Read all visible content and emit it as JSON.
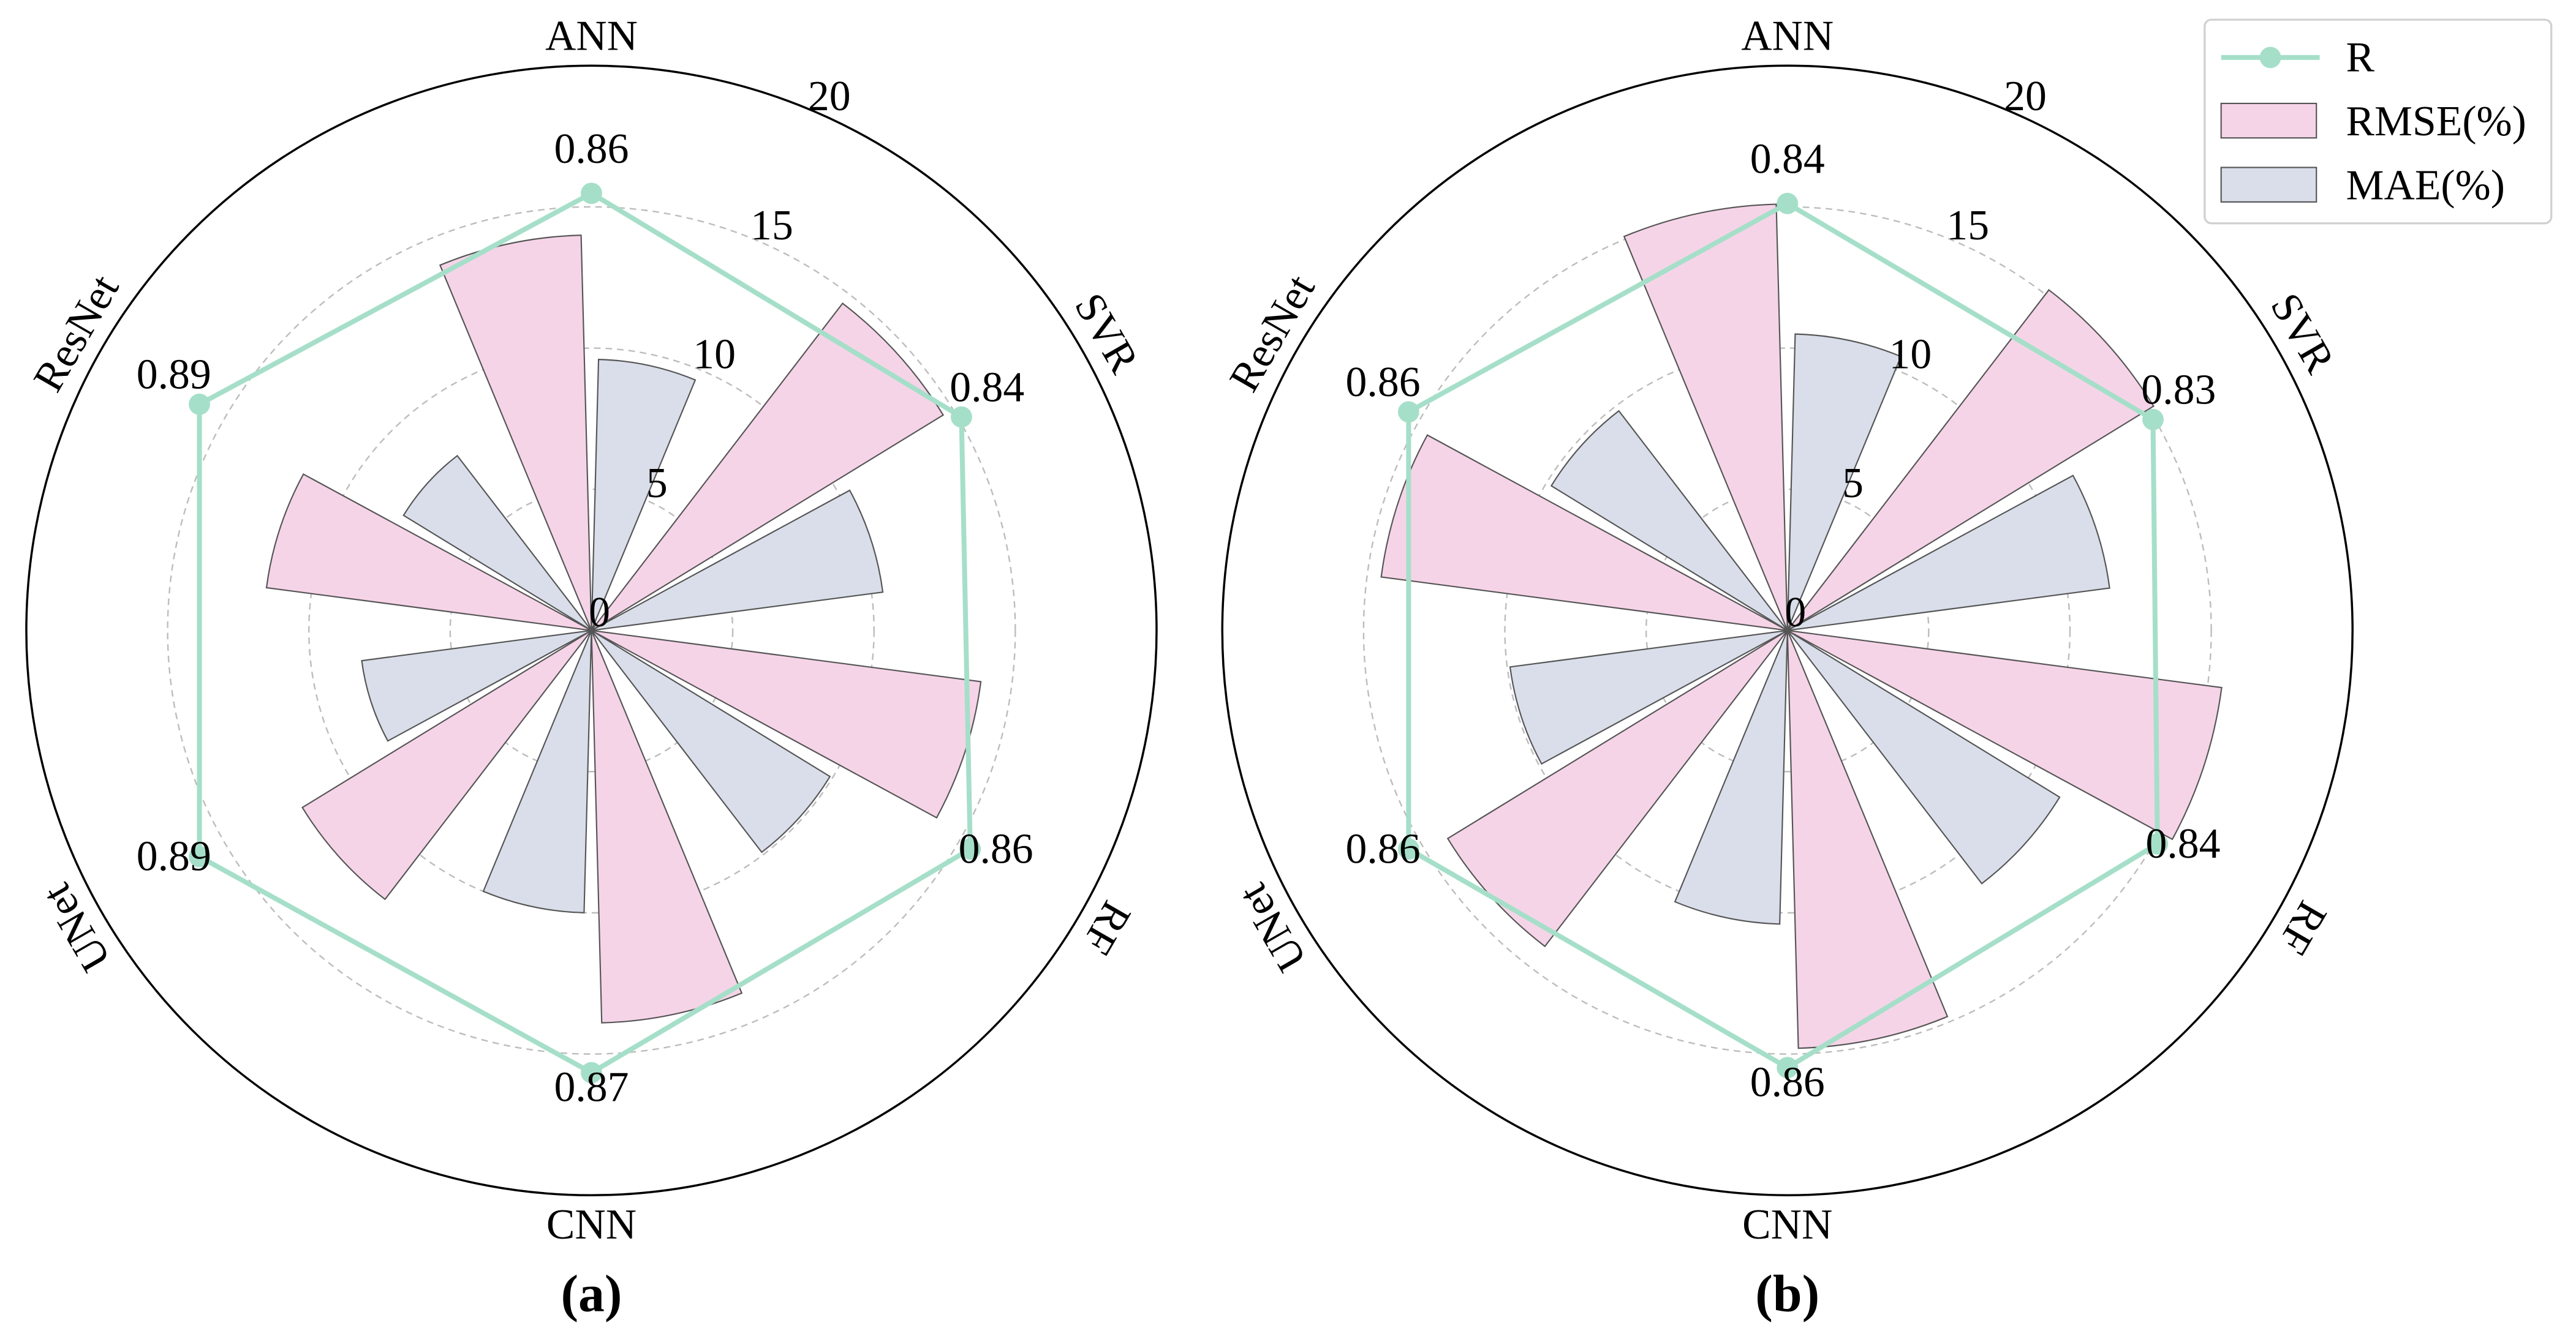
{
  "legend": {
    "position": "top-right"
  },
  "style": {
    "bar_edge": "#555555",
    "grid": "#bdbdbd",
    "frame": "#000000",
    "legend_frame": "#d0d0d0"
  },
  "chart_data": [
    {
      "type": "bar",
      "projection": "polar",
      "panel_label": "(a)",
      "categories": [
        "ANN",
        "SVR",
        "RF",
        "CNN",
        "UNet",
        "ResNet"
      ],
      "radial_ticks": [
        0,
        5,
        10,
        15,
        20
      ],
      "rlim": [
        0,
        20
      ],
      "grid": true,
      "series": [
        {
          "name": "R",
          "type": "line",
          "marker": "circle",
          "color": "#a6dfc9",
          "values": [
            0.86,
            0.84,
            0.86,
            0.87,
            0.89,
            0.89
          ]
        },
        {
          "name": "RMSE(%)",
          "type": "bar",
          "color": "#f6d4e8",
          "values": [
            14.0,
            14.6,
            13.9,
            13.9,
            12.0,
            11.6
          ]
        },
        {
          "name": "MAE(%)",
          "type": "bar",
          "color": "#d9deea",
          "values": [
            9.6,
            10.4,
            9.9,
            10.0,
            8.2,
            7.8
          ]
        }
      ]
    },
    {
      "type": "bar",
      "projection": "polar",
      "panel_label": "(b)",
      "categories": [
        "ANN",
        "SVR",
        "RF",
        "CNN",
        "UNet",
        "ResNet"
      ],
      "radial_ticks": [
        0,
        5,
        10,
        15,
        20
      ],
      "rlim": [
        0,
        20
      ],
      "grid": true,
      "series": [
        {
          "name": "R",
          "type": "line",
          "marker": "circle",
          "color": "#a6dfc9",
          "values": [
            0.84,
            0.83,
            0.84,
            0.86,
            0.86,
            0.86
          ]
        },
        {
          "name": "RMSE(%)",
          "type": "bar",
          "color": "#f6d4e8",
          "values": [
            15.1,
            15.2,
            15.5,
            14.8,
            14.1,
            14.5
          ]
        },
        {
          "name": "MAE(%)",
          "type": "bar",
          "color": "#d9deea",
          "values": [
            10.5,
            11.5,
            11.3,
            10.4,
            9.9,
            9.8
          ]
        }
      ]
    }
  ]
}
